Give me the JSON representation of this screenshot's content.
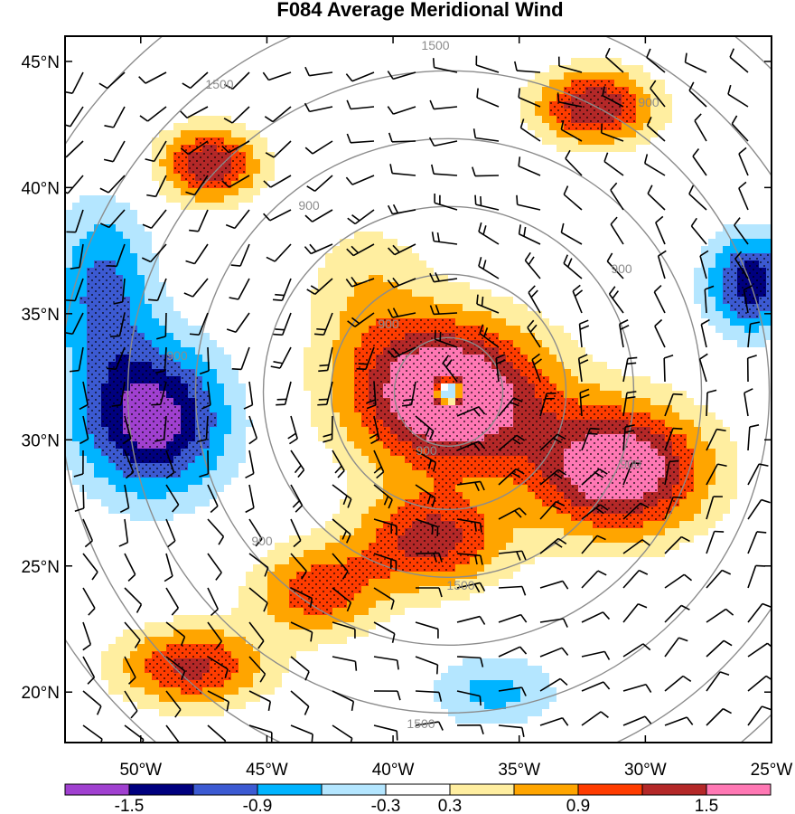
{
  "title": "F084 Average Meridional Wind",
  "colors": {
    "levels": [
      "#a040d0",
      "#00007f",
      "#3c5ad2",
      "#00b4ff",
      "#b4e6ff",
      "#ffffff",
      "#ffeea0",
      "#ffa500",
      "#ff3c00",
      "#b42828",
      "#ff78b4"
    ],
    "contour_line": "#8c8c8c",
    "barb": "#000000",
    "frame": "#000000"
  },
  "map": {
    "lat_range": [
      18,
      46
    ],
    "lon_range": [
      -53,
      -25
    ],
    "lat_ticks": [
      {
        "value": 45,
        "label": "45°N"
      },
      {
        "value": 40,
        "label": "40°N"
      },
      {
        "value": 35,
        "label": "35°N"
      },
      {
        "value": 30,
        "label": "30°N"
      },
      {
        "value": 25,
        "label": "25°N"
      },
      {
        "value": 20,
        "label": "20°N"
      }
    ],
    "lon_ticks": [
      {
        "value": -50,
        "label": "50°W"
      },
      {
        "value": -45,
        "label": "45°W"
      },
      {
        "value": -40,
        "label": "40°W"
      },
      {
        "value": -35,
        "label": "35°W"
      },
      {
        "value": -30,
        "label": "30°W"
      },
      {
        "value": -25,
        "label": "25°W"
      }
    ],
    "colorbar_labels": [
      "-1.5",
      "-0.9",
      "-0.3",
      "0.3",
      "0.9",
      "1.5"
    ],
    "range_ring_labels": [
      "1500",
      "1500",
      "900",
      "900",
      "900",
      "900",
      "900",
      "900",
      "900",
      "900",
      "1500",
      "1500"
    ],
    "field_centers": [
      {
        "lon": -37.8,
        "lat": 31.8,
        "value": 2.1,
        "sx": 4.0,
        "sy": 3.0
      },
      {
        "lon": -31.0,
        "lat": 28.8,
        "value": 1.9,
        "sx": 3.5,
        "sy": 2.6
      },
      {
        "lon": -38.5,
        "lat": 26.0,
        "value": 1.3,
        "sx": 3.0,
        "sy": 2.0
      },
      {
        "lon": -43.0,
        "lat": 24.0,
        "value": 1.1,
        "sx": 2.6,
        "sy": 1.8
      },
      {
        "lon": -48.0,
        "lat": 21.0,
        "value": 1.3,
        "sx": 3.0,
        "sy": 1.6
      },
      {
        "lon": -47.3,
        "lat": 40.9,
        "value": 1.5,
        "sx": 2.0,
        "sy": 1.5
      },
      {
        "lon": -32.0,
        "lat": 43.2,
        "value": 1.5,
        "sx": 2.4,
        "sy": 1.5
      },
      {
        "lon": -49.5,
        "lat": 30.8,
        "value": -1.7,
        "sx": 3.0,
        "sy": 3.0
      },
      {
        "lon": -51.5,
        "lat": 36.0,
        "value": -1.0,
        "sx": 2.0,
        "sy": 3.5
      },
      {
        "lon": -25.8,
        "lat": 36.2,
        "value": -1.4,
        "sx": 1.8,
        "sy": 2.0
      },
      {
        "lon": -36.0,
        "lat": 20.0,
        "value": -0.7,
        "sx": 2.6,
        "sy": 1.5
      },
      {
        "lon": -41.0,
        "lat": 36.0,
        "value": 0.5,
        "sx": 2.5,
        "sy": 3.0
      },
      {
        "lon": -37.8,
        "lat": 31.9,
        "value": -3.0,
        "sx": 0.5,
        "sy": 0.5
      }
    ],
    "storm_center": {
      "lon": -37.8,
      "lat": 31.9
    }
  }
}
